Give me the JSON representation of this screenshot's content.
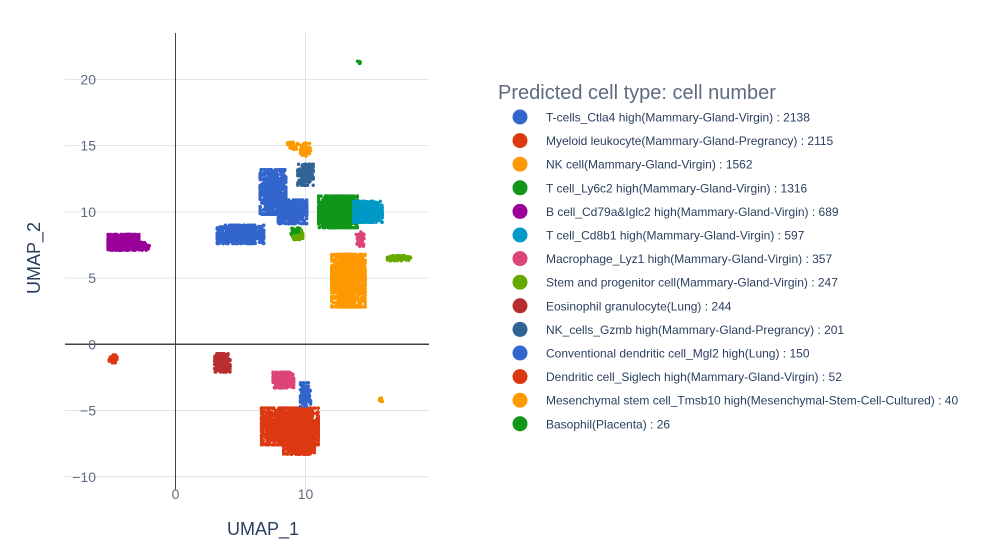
{
  "chart_data": {
    "type": "scatter",
    "xlabel": "UMAP_1",
    "ylabel": "UMAP_2",
    "xlim": [
      -8.5,
      19.5
    ],
    "ylim": [
      -11,
      23.5
    ],
    "x_ticks": [
      0,
      10
    ],
    "y_ticks": [
      -10,
      -5,
      0,
      5,
      10,
      15,
      20
    ],
    "x_tick_labels": [
      "0",
      "10"
    ],
    "y_tick_labels": [
      "−10",
      "−5",
      "0",
      "5",
      "10",
      "15",
      "20"
    ],
    "grid": true,
    "zero_lines": true,
    "legend": {
      "title": "Predicted cell type: cell number",
      "placement": "right"
    },
    "series": [
      {
        "name": "T-cells_Ctla4 high(Mammary-Gland-Virgin) : 2138",
        "color": "#3366cc",
        "clusters": [
          {
            "cx": 5.0,
            "cy": 8.3,
            "rx": 1.8,
            "ry": 0.7,
            "n": 700
          },
          {
            "cx": 7.5,
            "cy": 11.5,
            "rx": 1.0,
            "ry": 1.7,
            "n": 650
          },
          {
            "cx": 9.0,
            "cy": 10.0,
            "rx": 1.1,
            "ry": 0.9,
            "n": 450
          }
        ]
      },
      {
        "name": "Myeloid leukocyte(Mammary-Gland-Pregrancy) : 2115",
        "color": "#dc3912",
        "clusters": [
          {
            "cx": 8.8,
            "cy": -6.2,
            "rx": 2.2,
            "ry": 1.4,
            "n": 1700
          },
          {
            "cx": 9.5,
            "cy": -7.8,
            "rx": 1.2,
            "ry": 0.5,
            "n": 250
          }
        ]
      },
      {
        "name": "NK cell(Mammary-Gland-Virgin) : 1562",
        "color": "#ff9900",
        "clusters": [
          {
            "cx": 13.3,
            "cy": 4.8,
            "rx": 1.3,
            "ry": 2.0,
            "n": 1350
          },
          {
            "cx": 10.0,
            "cy": 14.7,
            "rx": 0.4,
            "ry": 0.5,
            "n": 60
          }
        ]
      },
      {
        "name": "T cell_Ly6c2 high(Mammary-Gland-Virgin) : 1316",
        "color": "#109618",
        "clusters": [
          {
            "cx": 12.5,
            "cy": 10.0,
            "rx": 1.5,
            "ry": 1.2,
            "n": 1150
          },
          {
            "cx": 9.3,
            "cy": 8.5,
            "rx": 0.4,
            "ry": 0.3,
            "n": 40
          },
          {
            "cx": 17.1,
            "cy": 6.5,
            "rx": 0.8,
            "ry": 0.15,
            "n": 40
          }
        ]
      },
      {
        "name": "B cell_Cd79a&Iglc2 high(Mammary-Gland-Virgin) : 689",
        "color": "#990099",
        "clusters": [
          {
            "cx": -4.0,
            "cy": 7.7,
            "rx": 1.2,
            "ry": 0.6,
            "n": 580
          },
          {
            "cx": -2.3,
            "cy": 7.4,
            "rx": 0.3,
            "ry": 0.3,
            "n": 30
          }
        ]
      },
      {
        "name": "T cell_Cd8b1 high(Mammary-Gland-Virgin) : 597",
        "color": "#0099c6",
        "clusters": [
          {
            "cx": 14.8,
            "cy": 10.0,
            "rx": 1.1,
            "ry": 0.8,
            "n": 520
          }
        ]
      },
      {
        "name": "Macrophage_Lyz1 high(Mammary-Gland-Virgin) : 357",
        "color": "#dd4477",
        "clusters": [
          {
            "cx": 8.3,
            "cy": -2.7,
            "rx": 0.8,
            "ry": 0.6,
            "n": 280
          },
          {
            "cx": 14.2,
            "cy": 8.0,
            "rx": 0.3,
            "ry": 0.6,
            "n": 40
          }
        ]
      },
      {
        "name": "Stem and progenitor cell(Mammary-Gland-Virgin) : 247",
        "color": "#66aa00",
        "clusters": [
          {
            "cx": 9.4,
            "cy": 8.3,
            "rx": 0.4,
            "ry": 0.4,
            "n": 110
          },
          {
            "cx": 17.2,
            "cy": 6.5,
            "rx": 0.9,
            "ry": 0.2,
            "n": 110
          }
        ]
      },
      {
        "name": "Eosinophil granulocyte(Lung) : 244",
        "color": "#b82e2e",
        "clusters": [
          {
            "cx": 3.6,
            "cy": -1.4,
            "rx": 0.6,
            "ry": 0.7,
            "n": 230
          }
        ]
      },
      {
        "name": "NK_cells_Gzmb high(Mammary-Gland-Pregrancy) : 201",
        "color": "#316395",
        "clusters": [
          {
            "cx": 10.0,
            "cy": 12.8,
            "rx": 0.6,
            "ry": 0.8,
            "n": 190
          }
        ]
      },
      {
        "name": "Conventional dendritic cell_Mgl2 high(Lung) : 150",
        "color": "#3366cc",
        "clusters": [
          {
            "cx": 10.0,
            "cy": -3.8,
            "rx": 0.4,
            "ry": 0.9,
            "n": 130
          }
        ]
      },
      {
        "name": "Dendritic cell_Siglech high(Mammary-Gland-Virgin) : 52",
        "color": "#dc3912",
        "clusters": [
          {
            "cx": -4.8,
            "cy": -1.1,
            "rx": 0.3,
            "ry": 0.3,
            "n": 50
          }
        ]
      },
      {
        "name": "Mesenchymal stem cell_Tmsb10 high(Mesenchymal-Stem-Cell-Cultured) : 40",
        "color": "#ff9900",
        "clusters": [
          {
            "cx": 9.0,
            "cy": 15.0,
            "rx": 0.4,
            "ry": 0.3,
            "n": 25
          },
          {
            "cx": 15.8,
            "cy": -4.2,
            "rx": 0.15,
            "ry": 0.2,
            "n": 15
          }
        ]
      },
      {
        "name": "Basophil(Placenta) : 26",
        "color": "#109618",
        "clusters": [
          {
            "cx": 14.1,
            "cy": 21.3,
            "rx": 0.1,
            "ry": 0.1,
            "n": 12
          },
          {
            "cx": 9.2,
            "cy": 8.5,
            "rx": 0.3,
            "ry": 0.3,
            "n": 14
          }
        ]
      }
    ]
  }
}
